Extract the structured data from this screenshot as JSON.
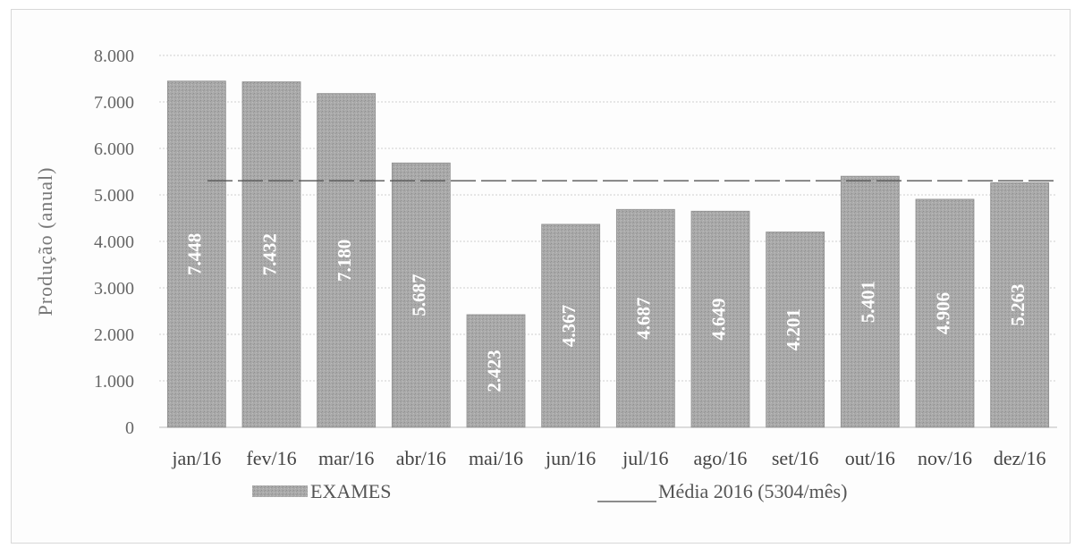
{
  "chart_data": {
    "type": "bar",
    "ylabel": "Produção (anual)",
    "ylim": [
      0,
      8000
    ],
    "yticks": [
      "0",
      "1.000",
      "2.000",
      "3.000",
      "4.000",
      "5.000",
      "6.000",
      "7.000",
      "8.000"
    ],
    "categories": [
      "jan/16",
      "fev/16",
      "mar/16",
      "abr/16",
      "mai/16",
      "jun/16",
      "jul/16",
      "ago/16",
      "set/16",
      "out/16",
      "nov/16",
      "dez/16"
    ],
    "series": [
      {
        "name": "EXAMES",
        "values": [
          7448,
          7432,
          7180,
          5687,
          2423,
          4367,
          4687,
          4649,
          4201,
          5401,
          4906,
          5263
        ],
        "labels": [
          "7.448",
          "7.432",
          "7.180",
          "5.687",
          "2.423",
          "4.367",
          "4.687",
          "4.649",
          "4.201",
          "5.401",
          "4.906",
          "5.263"
        ]
      }
    ],
    "reference_line": {
      "name": "Média 2016 (5304/mês)",
      "value": 5304,
      "style": "dashed"
    },
    "grid": true,
    "legend_position": "bottom",
    "colors": {
      "bar": "#a8a8a8",
      "reference": "#555555",
      "grid": "#cfcfcf"
    }
  }
}
